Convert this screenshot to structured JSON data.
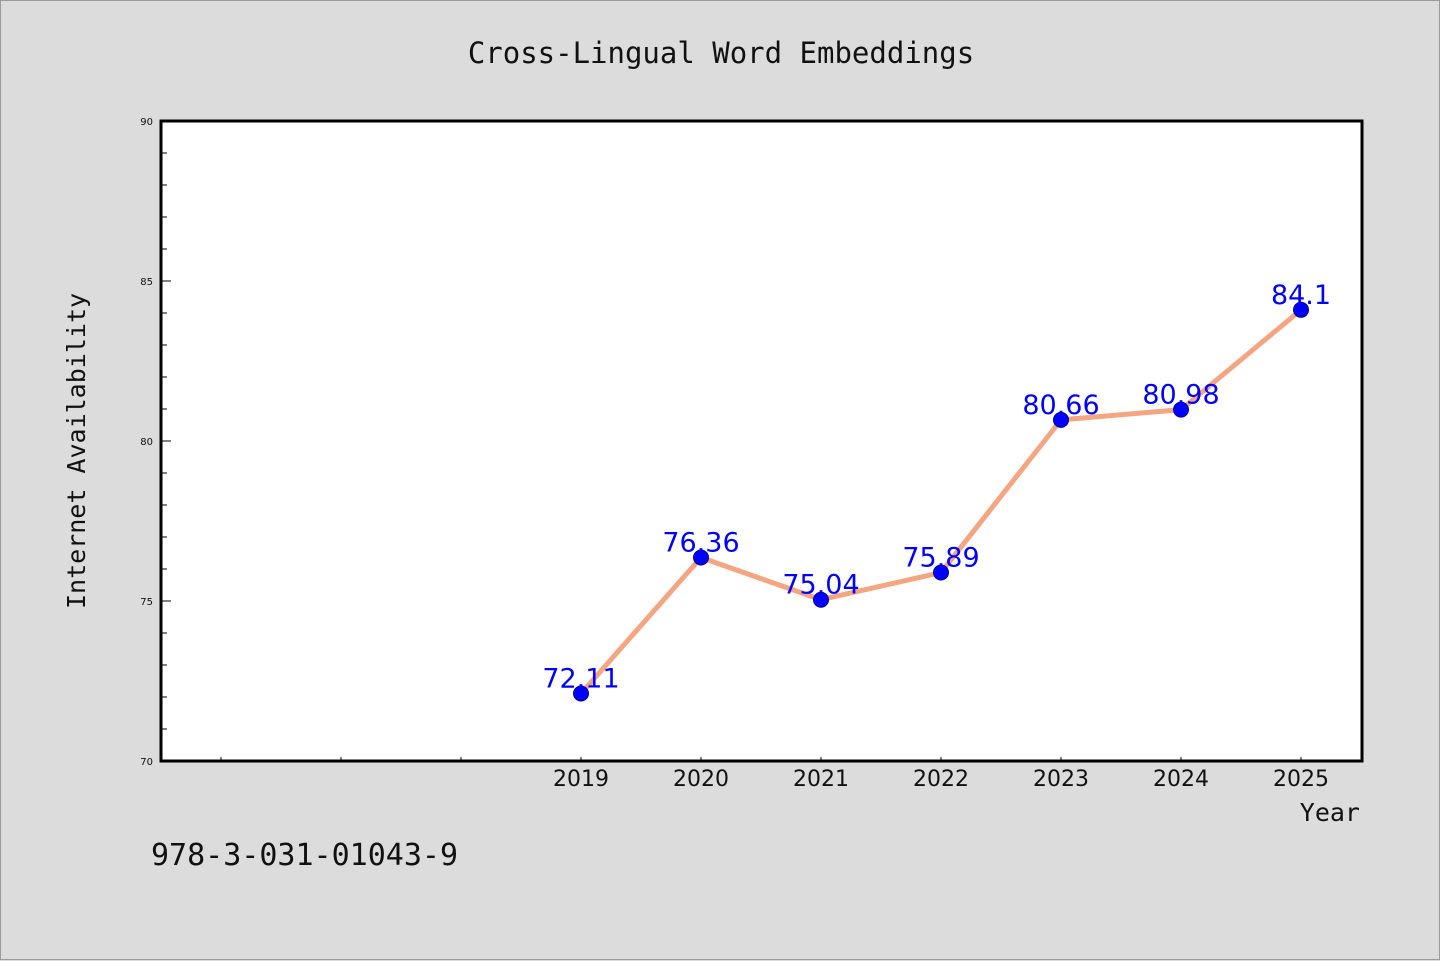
{
  "colors": {
    "background": "#dcdcdc",
    "plot_background": "#ffffff",
    "line": "#f4a582",
    "marker": "#0000ff",
    "marker_edge": "#00008b",
    "data_label": "#0000ff",
    "text": "#111111"
  },
  "footer_text": "978-3-031-01043-9",
  "chart_data": {
    "type": "line",
    "title": "Cross-Lingual Word Embeddings",
    "xlabel": "Year",
    "ylabel": "Internet Availability",
    "x": [
      "2019",
      "2020",
      "2021",
      "2022",
      "2023",
      "2024",
      "2025"
    ],
    "series": [
      {
        "values": [
          72.11,
          76.36,
          75.04,
          75.89,
          80.66,
          80.98,
          84.1
        ]
      }
    ],
    "data_labels": [
      "72.11",
      "76.36",
      "75.04",
      "75.89",
      "80.66",
      "80.98",
      "84.1"
    ],
    "ylim": [
      70,
      90
    ],
    "yticks": [
      70,
      75,
      80,
      85,
      90
    ],
    "ytick_labels": [
      "70",
      "75",
      "80",
      "85",
      "90"
    ],
    "y_minor_step": 1,
    "x_slots_before_data": 3,
    "grid": false,
    "legend": "none"
  }
}
